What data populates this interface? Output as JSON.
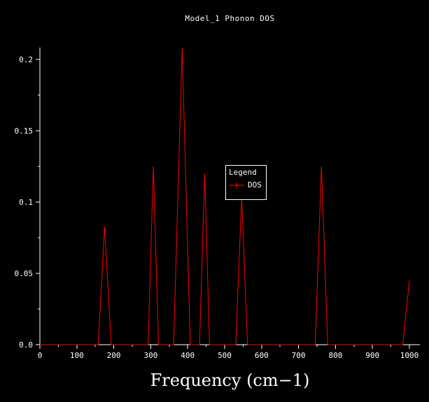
{
  "chart_data": {
    "type": "line",
    "title": "Model_1 Phonon DOS",
    "xlabel": "Frequency (cm−1)",
    "ylabel": "",
    "xlim": [
      0,
      1000
    ],
    "ylim": [
      0,
      0.2083
    ],
    "grid": false,
    "background_color": "#000000",
    "axis_color": "#ffffff",
    "line_color": "#ff0000",
    "x_ticks": [
      0,
      100,
      200,
      300,
      400,
      500,
      600,
      700,
      800,
      900,
      1000
    ],
    "x_minor_step": 50,
    "y_ticks": [
      {
        "v": 0.0,
        "label": "0.0"
      },
      {
        "v": 0.05,
        "label": "0.05"
      },
      {
        "v": 0.1,
        "label": "0.1"
      },
      {
        "v": 0.15,
        "label": "0.15"
      },
      {
        "v": 0.2,
        "label": "0.2"
      }
    ],
    "y_minor_step": 0.025,
    "legend": {
      "title": "Legend",
      "position": "center",
      "entries": [
        {
          "label": "DOS",
          "color": "#ff0000"
        }
      ]
    },
    "series": [
      {
        "name": "DOS",
        "color": "#ff0000",
        "points": [
          [
            0,
            0
          ],
          [
            158,
            0
          ],
          [
            175,
            0.083
          ],
          [
            193,
            0
          ],
          [
            293,
            0
          ],
          [
            307,
            0.125
          ],
          [
            321,
            0
          ],
          [
            362,
            0
          ],
          [
            385,
            0.208
          ],
          [
            407,
            0
          ],
          [
            432,
            0
          ],
          [
            446,
            0.12
          ],
          [
            459,
            0
          ],
          [
            530,
            0
          ],
          [
            546,
            0.103
          ],
          [
            562,
            0
          ],
          [
            745,
            0
          ],
          [
            762,
            0.125
          ],
          [
            779,
            0
          ],
          [
            982,
            0
          ],
          [
            1000,
            0.045
          ]
        ]
      }
    ]
  }
}
